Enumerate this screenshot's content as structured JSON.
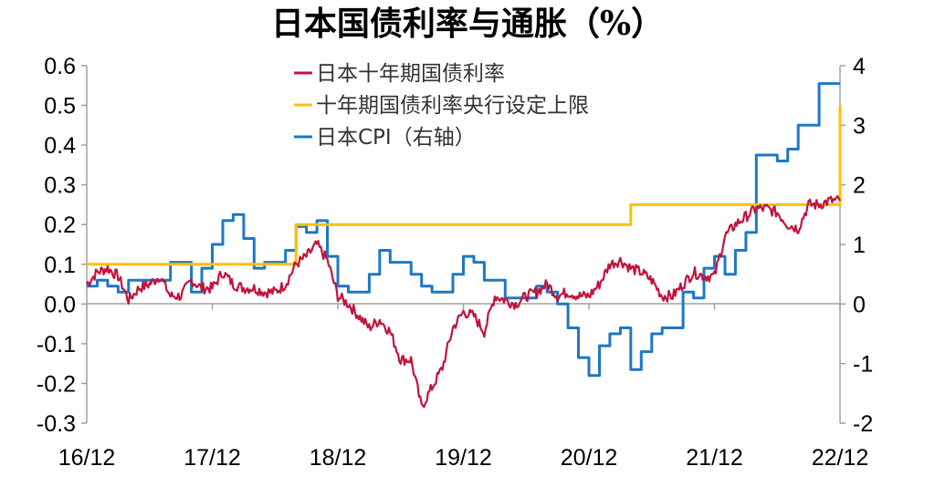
{
  "chart_data": {
    "type": "line",
    "title": "日本国债利率与通胀（%）",
    "x_tick_labels": [
      "16/12",
      "17/12",
      "18/12",
      "19/12",
      "20/12",
      "21/12",
      "22/12"
    ],
    "x_range": [
      "2016-12",
      "2022-12"
    ],
    "left_axis": {
      "ylim": [
        -0.3,
        0.6
      ],
      "ticks": [
        "0.6",
        "0.5",
        "0.4",
        "0.3",
        "0.2",
        "0.1",
        "0.0",
        "-0.1",
        "-0.2",
        "-0.3"
      ]
    },
    "right_axis": {
      "ylim": [
        -2,
        4
      ],
      "ticks": [
        "4",
        "3",
        "2",
        "1",
        "0",
        "-1",
        "-2"
      ]
    },
    "legend_position": "top-center",
    "colors": {
      "jgb": "#C0143C",
      "cap": "#FFC000",
      "cpi": "#1F77C4"
    },
    "series": [
      {
        "name": "日本十年期国债利率",
        "axis": "left",
        "style": "noisy-line",
        "points": [
          [
            "2016-12",
            0.05
          ],
          [
            "2017-01",
            0.08
          ],
          [
            "2017-02",
            0.09
          ],
          [
            "2017-03",
            0.07
          ],
          [
            "2017-04",
            0.01
          ],
          [
            "2017-05",
            0.04
          ],
          [
            "2017-06",
            0.05
          ],
          [
            "2017-07",
            0.07
          ],
          [
            "2017-08",
            0.02
          ],
          [
            "2017-09",
            0.02
          ],
          [
            "2017-10",
            0.06
          ],
          [
            "2017-11",
            0.04
          ],
          [
            "2017-12",
            0.04
          ],
          [
            "2018-01",
            0.08
          ],
          [
            "2018-02",
            0.05
          ],
          [
            "2018-03",
            0.04
          ],
          [
            "2018-04",
            0.04
          ],
          [
            "2018-05",
            0.03
          ],
          [
            "2018-06",
            0.03
          ],
          [
            "2018-07",
            0.05
          ],
          [
            "2018-08",
            0.1
          ],
          [
            "2018-09",
            0.12
          ],
          [
            "2018-10",
            0.15
          ],
          [
            "2018-11",
            0.11
          ],
          [
            "2018-12",
            0.02
          ],
          [
            "2019-01",
            0.0
          ],
          [
            "2019-02",
            -0.03
          ],
          [
            "2019-03",
            -0.06
          ],
          [
            "2019-04",
            -0.04
          ],
          [
            "2019-05",
            -0.07
          ],
          [
            "2019-06",
            -0.14
          ],
          [
            "2019-07",
            -0.14
          ],
          [
            "2019-08",
            -0.26
          ],
          [
            "2019-09",
            -0.21
          ],
          [
            "2019-10",
            -0.16
          ],
          [
            "2019-11",
            -0.06
          ],
          [
            "2019-12",
            -0.02
          ],
          [
            "2020-01",
            -0.03
          ],
          [
            "2020-02",
            -0.07
          ],
          [
            "2020-03",
            0.02
          ],
          [
            "2020-04",
            0.01
          ],
          [
            "2020-05",
            0.0
          ],
          [
            "2020-06",
            0.02
          ],
          [
            "2020-07",
            0.03
          ],
          [
            "2020-08",
            0.05
          ],
          [
            "2020-09",
            0.02
          ],
          [
            "2020-10",
            0.03
          ],
          [
            "2020-11",
            0.02
          ],
          [
            "2020-12",
            0.02
          ],
          [
            "2021-01",
            0.05
          ],
          [
            "2021-02",
            0.1
          ],
          [
            "2021-03",
            0.11
          ],
          [
            "2021-04",
            0.09
          ],
          [
            "2021-05",
            0.08
          ],
          [
            "2021-06",
            0.06
          ],
          [
            "2021-07",
            0.02
          ],
          [
            "2021-08",
            0.02
          ],
          [
            "2021-09",
            0.05
          ],
          [
            "2021-10",
            0.08
          ],
          [
            "2021-11",
            0.07
          ],
          [
            "2021-12",
            0.07
          ],
          [
            "2022-01",
            0.17
          ],
          [
            "2022-02",
            0.2
          ],
          [
            "2022-03",
            0.22
          ],
          [
            "2022-04",
            0.24
          ],
          [
            "2022-05",
            0.24
          ],
          [
            "2022-06",
            0.23
          ],
          [
            "2022-07",
            0.2
          ],
          [
            "2022-08",
            0.19
          ],
          [
            "2022-09",
            0.25
          ],
          [
            "2022-10",
            0.25
          ],
          [
            "2022-11",
            0.26
          ],
          [
            "2022-12",
            0.26
          ]
        ]
      },
      {
        "name": "十年期国债利率央行设定上限",
        "axis": "left",
        "style": "step-line",
        "points": [
          [
            "2016-12",
            0.1
          ],
          [
            "2018-07",
            0.1
          ],
          [
            "2018-08",
            0.2
          ],
          [
            "2021-03",
            0.2
          ],
          [
            "2021-04",
            0.25
          ],
          [
            "2022-12",
            0.25
          ],
          [
            "2022-12",
            0.5
          ]
        ]
      },
      {
        "name": "日本CPI（右轴）",
        "axis": "right",
        "style": "step-line",
        "points": [
          [
            "2016-12",
            0.3
          ],
          [
            "2017-01",
            0.4
          ],
          [
            "2017-02",
            0.3
          ],
          [
            "2017-03",
            0.2
          ],
          [
            "2017-04",
            0.4
          ],
          [
            "2017-05",
            0.4
          ],
          [
            "2017-06",
            0.4
          ],
          [
            "2017-07",
            0.4
          ],
          [
            "2017-08",
            0.7
          ],
          [
            "2017-09",
            0.7
          ],
          [
            "2017-10",
            0.2
          ],
          [
            "2017-11",
            0.6
          ],
          [
            "2017-12",
            1.0
          ],
          [
            "2018-01",
            1.4
          ],
          [
            "2018-02",
            1.5
          ],
          [
            "2018-03",
            1.1
          ],
          [
            "2018-04",
            0.6
          ],
          [
            "2018-05",
            0.7
          ],
          [
            "2018-06",
            0.7
          ],
          [
            "2018-07",
            0.9
          ],
          [
            "2018-08",
            1.3
          ],
          [
            "2018-09",
            1.2
          ],
          [
            "2018-10",
            1.4
          ],
          [
            "2018-11",
            0.8
          ],
          [
            "2018-12",
            0.3
          ],
          [
            "2019-01",
            0.2
          ],
          [
            "2019-02",
            0.2
          ],
          [
            "2019-03",
            0.5
          ],
          [
            "2019-04",
            0.9
          ],
          [
            "2019-05",
            0.7
          ],
          [
            "2019-06",
            0.7
          ],
          [
            "2019-07",
            0.5
          ],
          [
            "2019-08",
            0.3
          ],
          [
            "2019-09",
            0.2
          ],
          [
            "2019-10",
            0.2
          ],
          [
            "2019-11",
            0.5
          ],
          [
            "2019-12",
            0.8
          ],
          [
            "2020-01",
            0.7
          ],
          [
            "2020-02",
            0.4
          ],
          [
            "2020-03",
            0.4
          ],
          [
            "2020-04",
            0.1
          ],
          [
            "2020-05",
            0.1
          ],
          [
            "2020-06",
            0.1
          ],
          [
            "2020-07",
            0.3
          ],
          [
            "2020-08",
            0.2
          ],
          [
            "2020-09",
            0.0
          ],
          [
            "2020-10",
            -0.4
          ],
          [
            "2020-11",
            -0.9
          ],
          [
            "2020-12",
            -1.2
          ],
          [
            "2021-01",
            -0.7
          ],
          [
            "2021-02",
            -0.5
          ],
          [
            "2021-03",
            -0.4
          ],
          [
            "2021-04",
            -1.1
          ],
          [
            "2021-05",
            -0.8
          ],
          [
            "2021-06",
            -0.5
          ],
          [
            "2021-07",
            -0.4
          ],
          [
            "2021-08",
            -0.4
          ],
          [
            "2021-09",
            0.2
          ],
          [
            "2021-10",
            0.1
          ],
          [
            "2021-11",
            0.6
          ],
          [
            "2021-12",
            0.8
          ],
          [
            "2022-01",
            0.5
          ],
          [
            "2022-02",
            0.9
          ],
          [
            "2022-03",
            1.2
          ],
          [
            "2022-04",
            2.5
          ],
          [
            "2022-05",
            2.5
          ],
          [
            "2022-06",
            2.4
          ],
          [
            "2022-07",
            2.6
          ],
          [
            "2022-08",
            3.0
          ],
          [
            "2022-09",
            3.0
          ],
          [
            "2022-10",
            3.7
          ],
          [
            "2022-11",
            3.7
          ],
          [
            "2022-12",
            3.7
          ]
        ]
      }
    ]
  }
}
